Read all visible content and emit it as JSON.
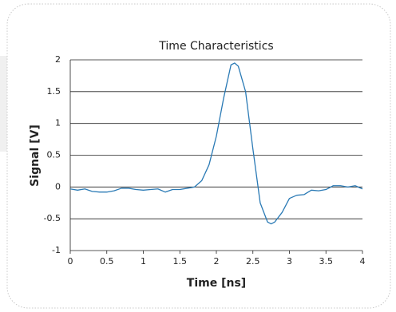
{
  "chart_data": {
    "type": "line",
    "title": "Time Characteristics",
    "x_label": "Time [ns]",
    "y_label": "Signal [V]",
    "x": [
      0,
      0.1,
      0.2,
      0.3,
      0.4,
      0.5,
      0.6,
      0.7,
      0.8,
      0.9,
      1.0,
      1.1,
      1.2,
      1.3,
      1.4,
      1.5,
      1.6,
      1.7,
      1.8,
      1.9,
      2.0,
      2.1,
      2.2,
      2.25,
      2.3,
      2.4,
      2.5,
      2.6,
      2.7,
      2.75,
      2.8,
      2.9,
      3.0,
      3.1,
      3.2,
      3.3,
      3.4,
      3.5,
      3.6,
      3.7,
      3.8,
      3.9,
      4.0
    ],
    "series": [
      {
        "color": "#2a7ab5",
        "values": [
          -0.03,
          -0.05,
          -0.03,
          -0.07,
          -0.08,
          -0.08,
          -0.06,
          -0.02,
          -0.02,
          -0.04,
          -0.05,
          -0.04,
          -0.03,
          -0.08,
          -0.04,
          -0.04,
          -0.02,
          0.0,
          0.1,
          0.35,
          0.8,
          1.4,
          1.92,
          1.95,
          1.9,
          1.5,
          0.6,
          -0.25,
          -0.55,
          -0.58,
          -0.55,
          -0.4,
          -0.18,
          -0.13,
          -0.12,
          -0.05,
          -0.06,
          -0.04,
          0.02,
          0.02,
          0.0,
          0.02,
          -0.03
        ]
      }
    ],
    "xlim": [
      0,
      4
    ],
    "xticks": [
      0,
      0.5,
      1,
      1.5,
      2,
      2.5,
      3,
      3.5,
      4
    ],
    "ylim": [
      -1,
      2
    ],
    "yticks": [
      -1,
      -0.5,
      0,
      0.5,
      1,
      1.5,
      2
    ],
    "grid": true
  }
}
